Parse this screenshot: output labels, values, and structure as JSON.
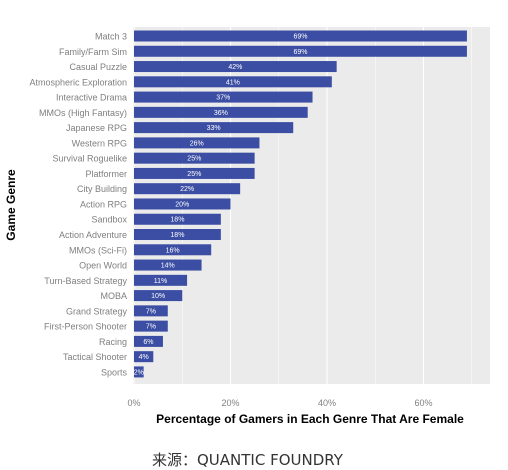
{
  "chart_data": {
    "type": "bar",
    "orientation": "horizontal",
    "title": "",
    "xlabel": "Percentage of Gamers in Each Genre That Are Female",
    "ylabel": "Game Genre",
    "xlim": [
      0,
      75
    ],
    "xticks": [
      0,
      20,
      40,
      60
    ],
    "xtick_labels": [
      "0%",
      "20%",
      "40%",
      "60%"
    ],
    "grid": true,
    "legend": "none",
    "categories": [
      "Match 3",
      "Family/Farm Sim",
      "Casual Puzzle",
      "Atmospheric Exploration",
      "Interactive Drama",
      "MMOs (High Fantasy)",
      "Japanese RPG",
      "Western RPG",
      "Survival Roguelike",
      "Platformer",
      "City Building",
      "Action RPG",
      "Sandbox",
      "Action Adventure",
      "MMOs (Sci-Fi)",
      "Open World",
      "Turn-Based Strategy",
      "MOBA",
      "Grand Strategy",
      "First-Person Shooter",
      "Racing",
      "Tactical Shooter",
      "Sports"
    ],
    "values": [
      69,
      69,
      42,
      41,
      37,
      36,
      33,
      26,
      25,
      25,
      22,
      20,
      18,
      18,
      16,
      14,
      11,
      10,
      7,
      7,
      6,
      4,
      2
    ],
    "value_labels": [
      "69%",
      "69%",
      "42%",
      "41%",
      "37%",
      "36%",
      "33%",
      "26%",
      "25%",
      "25%",
      "22%",
      "20%",
      "18%",
      "18%",
      "16%",
      "14%",
      "11%",
      "10%",
      "7%",
      "7%",
      "6%",
      "4%",
      "2%"
    ]
  },
  "colors": {
    "bar": "#3b4ea3",
    "panel_bg": "#ebebeb",
    "grid_line": "#ffffff",
    "bar_label": "#ffffff",
    "tick_label": "#7f7f7f",
    "axis_title": "#000000"
  },
  "source_text": "来源：QUANTIC FOUNDRY"
}
